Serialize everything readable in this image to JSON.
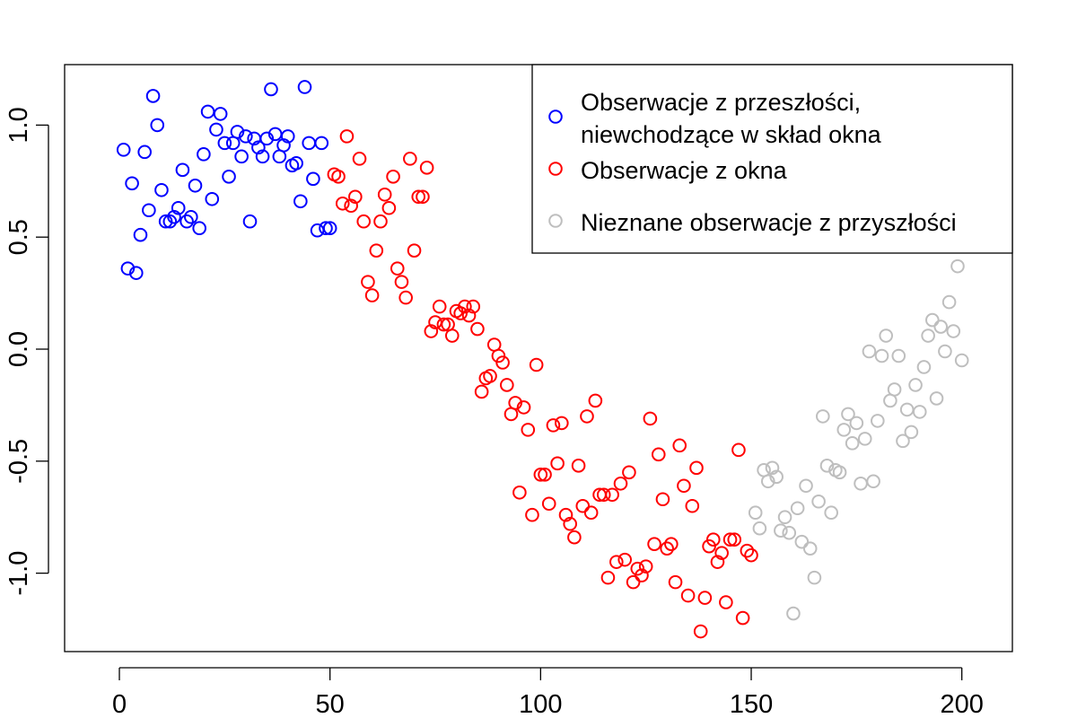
{
  "chart_data": {
    "type": "scatter",
    "xlim": [
      -13,
      212
    ],
    "ylim": [
      -1.35,
      1.27
    ],
    "x_ticks": [
      0,
      50,
      100,
      150,
      200
    ],
    "x_tick_labels": [
      "0",
      "50",
      "100",
      "150",
      "200"
    ],
    "y_ticks": [
      -1.0,
      -0.5,
      0.0,
      0.5,
      1.0
    ],
    "y_tick_labels": [
      "-1.0",
      "-0.5",
      "0.0",
      "0.5",
      "1.0"
    ],
    "grid": false,
    "legend_position": "top-right",
    "series": [
      {
        "name": "Obserwacje z przeszłości,\nniewchodzące w skład okna",
        "legend_lines": [
          "Obserwacje z przeszłości,",
          "niewchodzące w skład okna"
        ],
        "color": "#0000ff",
        "x": [
          1,
          2,
          3,
          4,
          5,
          6,
          7,
          8,
          9,
          10,
          11,
          12,
          13,
          14,
          15,
          16,
          17,
          18,
          19,
          20,
          21,
          22,
          23,
          24,
          25,
          26,
          27,
          28,
          29,
          30,
          31,
          32,
          33,
          34,
          35,
          36,
          37,
          38,
          39,
          40,
          41,
          42,
          43,
          44,
          45,
          46,
          47,
          48,
          49,
          50
        ],
        "y": [
          0.89,
          0.36,
          0.74,
          0.34,
          0.51,
          0.88,
          0.62,
          1.13,
          1.0,
          0.71,
          0.57,
          0.57,
          0.59,
          0.63,
          0.8,
          0.57,
          0.59,
          0.73,
          0.54,
          0.87,
          1.06,
          0.67,
          0.98,
          1.05,
          0.92,
          0.77,
          0.92,
          0.97,
          0.86,
          0.95,
          0.57,
          0.94,
          0.9,
          0.86,
          0.94,
          1.16,
          0.96,
          0.86,
          0.91,
          0.95,
          0.82,
          0.83,
          0.66,
          1.17,
          0.92,
          0.76,
          0.53,
          0.92,
          0.54,
          0.54
        ]
      },
      {
        "name": "Obserwacje z okna",
        "legend_lines": [
          "Obserwacje z okna"
        ],
        "color": "#ff0000",
        "x": [
          51,
          52,
          53,
          54,
          55,
          56,
          57,
          58,
          59,
          60,
          61,
          62,
          63,
          64,
          65,
          66,
          67,
          68,
          69,
          70,
          71,
          72,
          73,
          74,
          75,
          76,
          77,
          78,
          79,
          80,
          81,
          82,
          83,
          84,
          85,
          86,
          87,
          88,
          89,
          90,
          91,
          92,
          93,
          94,
          95,
          96,
          97,
          98,
          99,
          100,
          101,
          102,
          103,
          104,
          105,
          106,
          107,
          108,
          109,
          110,
          111,
          112,
          113,
          114,
          115,
          116,
          117,
          118,
          119,
          120,
          121,
          122,
          123,
          124,
          125,
          126,
          127,
          128,
          129,
          130,
          131,
          132,
          133,
          134,
          135,
          136,
          137,
          138,
          139,
          140,
          141,
          142,
          143,
          144,
          145,
          146,
          147,
          148,
          149,
          150
        ],
        "y": [
          0.78,
          0.77,
          0.65,
          0.95,
          0.64,
          0.68,
          0.85,
          0.57,
          0.3,
          0.24,
          0.44,
          0.57,
          0.69,
          0.63,
          0.77,
          0.36,
          0.3,
          0.23,
          0.85,
          0.44,
          0.68,
          0.68,
          0.81,
          0.08,
          0.12,
          0.19,
          0.11,
          0.11,
          0.06,
          0.17,
          0.16,
          0.19,
          0.15,
          0.19,
          0.09,
          -0.19,
          -0.13,
          -0.12,
          0.02,
          -0.03,
          -0.06,
          -0.16,
          -0.29,
          -0.24,
          -0.64,
          -0.26,
          -0.36,
          -0.74,
          -0.07,
          -0.56,
          -0.56,
          -0.69,
          -0.34,
          -0.51,
          -0.33,
          -0.74,
          -0.78,
          -0.84,
          -0.52,
          -0.7,
          -0.3,
          -0.73,
          -0.23,
          -0.65,
          -0.65,
          -1.02,
          -0.65,
          -0.95,
          -0.6,
          -0.94,
          -0.55,
          -1.04,
          -0.98,
          -1.01,
          -0.97,
          -0.31,
          -0.87,
          -0.47,
          -0.67,
          -0.89,
          -0.87,
          -1.04,
          -0.43,
          -0.61,
          -1.1,
          -0.7,
          -0.53,
          -1.26,
          -1.11,
          -0.88,
          -0.85,
          -0.95,
          -0.91,
          -1.13,
          -0.85,
          -0.85,
          -0.45,
          -1.2,
          -0.9,
          -0.92
        ]
      },
      {
        "name": "Nieznane obserwacje z przyszłości",
        "legend_lines": [
          "Nieznane obserwacje z przyszłości"
        ],
        "color": "#bebebe",
        "x": [
          151,
          152,
          153,
          154,
          155,
          156,
          157,
          158,
          159,
          160,
          161,
          162,
          163,
          164,
          165,
          166,
          167,
          168,
          169,
          170,
          171,
          172,
          173,
          174,
          175,
          176,
          177,
          178,
          179,
          180,
          181,
          182,
          183,
          184,
          185,
          186,
          187,
          188,
          189,
          190,
          191,
          192,
          193,
          194,
          195,
          196,
          197,
          198,
          199,
          200
        ],
        "y": [
          -0.73,
          -0.8,
          -0.54,
          -0.59,
          -0.53,
          -0.57,
          -0.81,
          -0.75,
          -0.82,
          -1.18,
          -0.71,
          -0.86,
          -0.61,
          -0.89,
          -1.02,
          -0.68,
          -0.3,
          -0.52,
          -0.73,
          -0.54,
          -0.55,
          -0.36,
          -0.29,
          -0.42,
          -0.33,
          -0.6,
          -0.4,
          -0.01,
          -0.59,
          -0.32,
          -0.03,
          0.06,
          -0.23,
          -0.18,
          -0.03,
          -0.41,
          -0.27,
          -0.37,
          -0.16,
          -0.28,
          -0.08,
          0.06,
          0.13,
          -0.22,
          0.1,
          -0.01,
          0.21,
          0.08,
          0.37,
          -0.05
        ]
      }
    ]
  }
}
